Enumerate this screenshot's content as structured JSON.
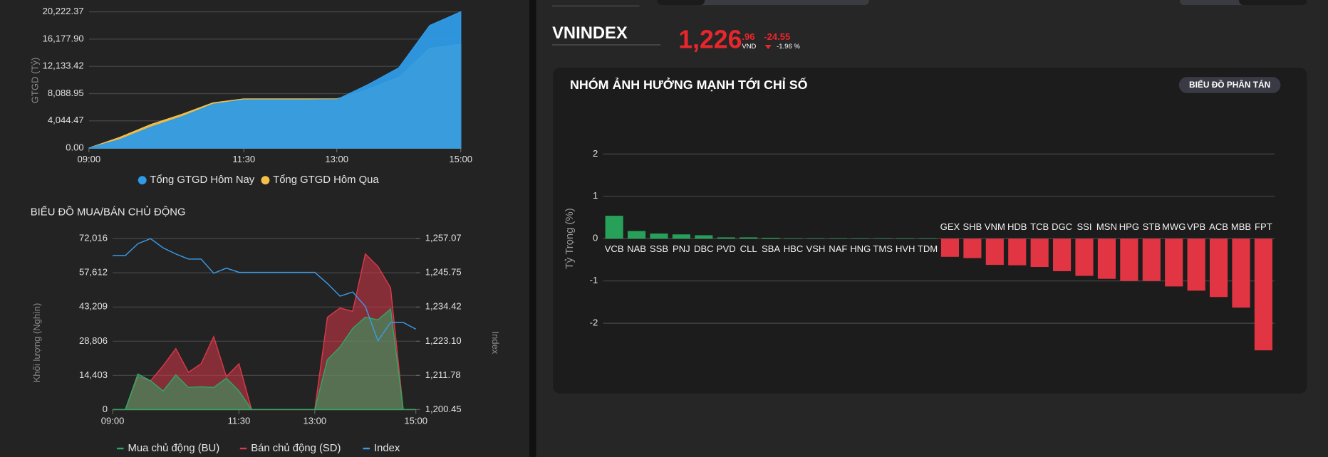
{
  "header": {
    "symbol": "VNINDEX",
    "price": "1,226",
    "price_decimal": ".96",
    "currency": "VND",
    "change": "-24.55",
    "change_percent": "-1.96 %"
  },
  "button": "BIỂU ĐỒ PHÂN TÁN",
  "chart_data": [
    {
      "type": "area",
      "ylabel": "GTGD (Tỷ)",
      "x": [
        "09:00",
        "09:30",
        "10:00",
        "10:30",
        "11:00",
        "11:30",
        "12:00",
        "12:30",
        "13:00",
        "13:30",
        "14:00",
        "14:30",
        "15:00"
      ],
      "xticks": [
        "09:00",
        "11:30",
        "13:00",
        "15:00"
      ],
      "ylim": [
        0,
        20222.37
      ],
      "yticks": [
        {
          "value": 0,
          "label": "0.00"
        },
        {
          "value": 4044.47,
          "label": "4,044.47"
        },
        {
          "value": 8088.95,
          "label": "8,088.95"
        },
        {
          "value": 12133.42,
          "label": "12,133.42"
        },
        {
          "value": 16177.9,
          "label": "16,177.90"
        },
        {
          "value": 20222.37,
          "label": "20,222.37"
        }
      ],
      "grid": true,
      "series": [
        {
          "name": "Tổng GTGD Hôm Nay",
          "color": "#2f9be6",
          "values": [
            0,
            1250,
            3100,
            4650,
            6500,
            7150,
            7150,
            7150,
            7200,
            9400,
            11900,
            18200,
            20222
          ]
        },
        {
          "name": "Tổng GTGD Hôm Qua",
          "color": "#f5c04a",
          "values": [
            0,
            1600,
            3500,
            5000,
            6700,
            7300,
            7300,
            7300,
            7300,
            8700,
            10500,
            14800,
            15400
          ]
        }
      ]
    },
    {
      "type": "area",
      "title": "BIỂU ĐỒ MUA/BÁN CHỦ ĐỘNG",
      "ylabel": "Khối lượng (Nghìn)",
      "y2label": "Index",
      "x": [
        "09:00",
        "09:15",
        "09:30",
        "09:45",
        "10:00",
        "10:15",
        "10:30",
        "10:45",
        "11:00",
        "11:15",
        "11:30",
        "11:45",
        "12:00",
        "12:15",
        "12:30",
        "12:45",
        "13:00",
        "13:15",
        "13:30",
        "13:45",
        "14:00",
        "14:15",
        "14:30",
        "14:45",
        "15:00"
      ],
      "xticks": [
        "09:00",
        "11:30",
        "13:00",
        "15:00"
      ],
      "ylim": [
        0,
        72016
      ],
      "yticks": [
        0,
        {
          "value": 14403,
          "label": "14,403"
        },
        {
          "value": 28806,
          "label": "28,806"
        },
        {
          "value": 43209,
          "label": "43,209"
        },
        {
          "value": 57612,
          "label": "57,612"
        },
        {
          "value": 72016,
          "label": "72,016"
        }
      ],
      "y2lim": [
        1200.45,
        1257.07
      ],
      "y2ticks": [
        {
          "value": 1200.45,
          "label": "1,200.45"
        },
        {
          "value": 1211.78,
          "label": "1,211.78"
        },
        {
          "value": 1223.1,
          "label": "1,223.10"
        },
        {
          "value": 1234.42,
          "label": "1,234.42"
        },
        {
          "value": 1245.75,
          "label": "1,245.75"
        },
        {
          "value": 1257.07,
          "label": "1,257.07"
        }
      ],
      "grid": true,
      "series": [
        {
          "name": "Mua chủ động (BU)",
          "color": "#2fa866",
          "values": [
            0,
            0,
            15000,
            12100,
            7800,
            14600,
            9300,
            9600,
            9300,
            13200,
            7800,
            0,
            0,
            0,
            0,
            0,
            0,
            21000,
            26400,
            34200,
            38900,
            37800,
            42400,
            0,
            0
          ]
        },
        {
          "name": "Bán chủ động (SD)",
          "color": "#d9394a",
          "values": [
            0,
            0,
            13900,
            12100,
            18500,
            25700,
            15700,
            19300,
            30700,
            13900,
            19300,
            0,
            0,
            0,
            0,
            0,
            0,
            38900,
            42800,
            41400,
            65600,
            60300,
            51300,
            0,
            0
          ]
        },
        {
          "name": "Index",
          "color": "#3b9be8",
          "type": "line",
          "axis": "y2",
          "values": [
            1251.47,
            1251.47,
            1255.4,
            1257.07,
            1254.0,
            1252.0,
            1250.3,
            1250.3,
            1245.6,
            1247.3,
            1245.9,
            1245.9,
            1245.9,
            1245.9,
            1245.9,
            1245.9,
            1245.9,
            1242.2,
            1238.0,
            1239.4,
            1234.6,
            1223.2,
            1229.3,
            1229.3,
            1227.1
          ]
        }
      ]
    },
    {
      "type": "bar",
      "title": "NHÓM ẢNH HƯỞNG MẠNH TỚI CHỈ SỐ",
      "ylabel": "Tỷ Trọng (%)",
      "categories": [
        "VCB",
        "NAB",
        "SSB",
        "PNJ",
        "DBC",
        "PVD",
        "CLL",
        "SBA",
        "HBC",
        "VSH",
        "NAF",
        "HNG",
        "TMS",
        "HVH",
        "TDM",
        "GEX",
        "SHB",
        "VNM",
        "HDB",
        "TCB",
        "DGC",
        "SSI",
        "MSN",
        "HPG",
        "STB",
        "MWG",
        "VPB",
        "ACB",
        "MBB",
        "FPT"
      ],
      "values": [
        0.54,
        0.18,
        0.12,
        0.1,
        0.08,
        0.03,
        0.03,
        0.02,
        0.01,
        0.01,
        0.01,
        0.01,
        0.01,
        0.01,
        0.01,
        -0.43,
        -0.46,
        -0.62,
        -0.63,
        -0.67,
        -0.77,
        -0.88,
        -0.95,
        -1.0,
        -1.0,
        -1.13,
        -1.23,
        -1.38,
        -1.63,
        -2.64
      ],
      "ylim": [
        -3,
        3
      ],
      "yticks": [
        -2,
        -1,
        0,
        1,
        2
      ],
      "grid": true,
      "positive_color": "#27a05a",
      "negative_color": "#e23543"
    }
  ]
}
